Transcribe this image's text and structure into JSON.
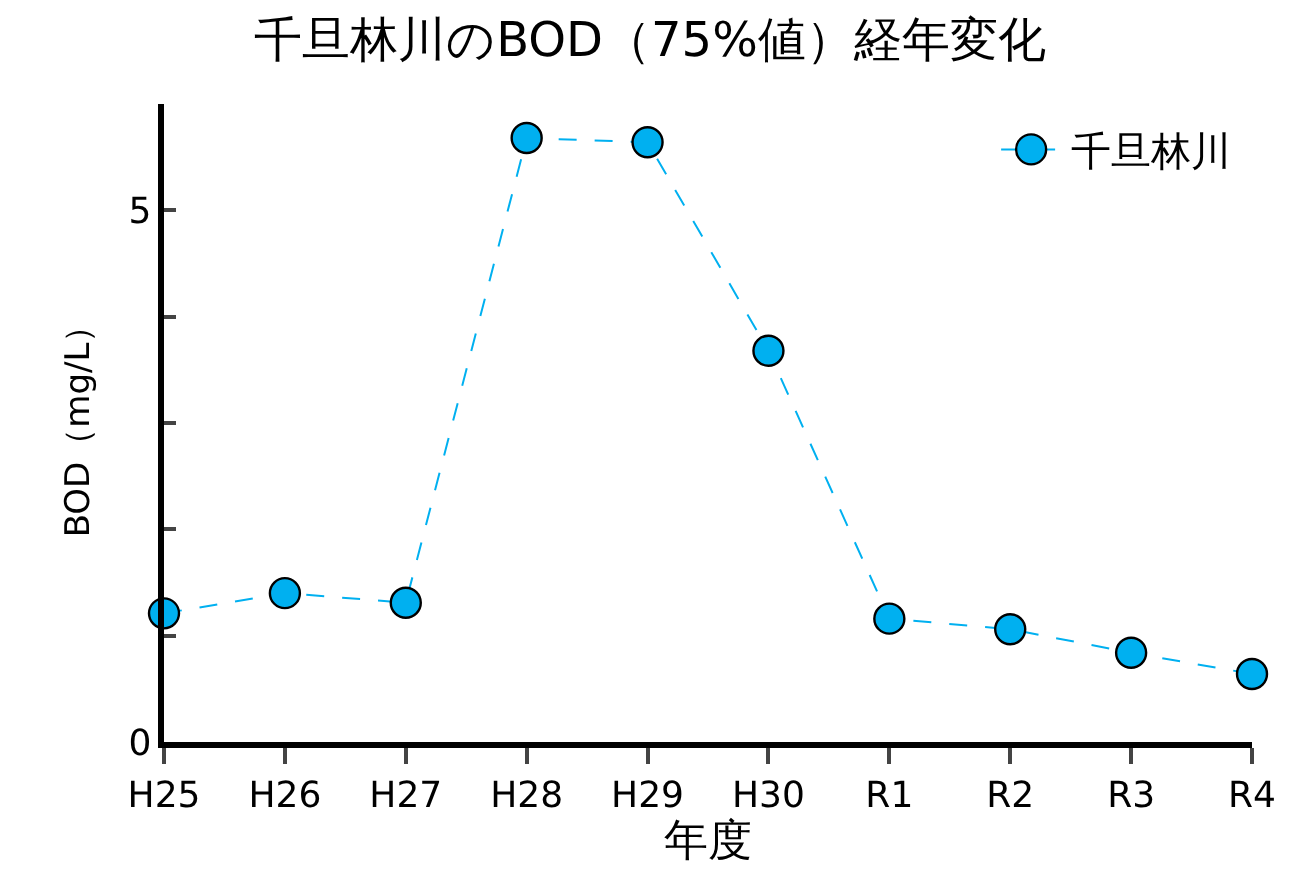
{
  "chart_data": {
    "type": "line",
    "title": "千旦林川のBOD（75%値）経年変化",
    "xlabel": "年度",
    "ylabel": "BOD（mg/L）",
    "categories": [
      "H25",
      "H26",
      "H27",
      "H28",
      "H29",
      "H30",
      "R1",
      "R2",
      "R3",
      "R4"
    ],
    "series": [
      {
        "name": "千旦林川",
        "color": "#00b0f0",
        "values": [
          1.21,
          1.4,
          1.31,
          5.68,
          5.64,
          3.68,
          1.16,
          1.06,
          0.84,
          0.64
        ]
      }
    ],
    "ylim": [
      0,
      6
    ],
    "yticks": [
      0,
      {
        "value": 1,
        "label": null
      },
      {
        "value": 2,
        "label": null
      },
      {
        "value": 3,
        "label": null
      },
      {
        "value": 4,
        "label": null
      },
      5
    ],
    "legend": "top right",
    "marker": "circle",
    "line_style": "dashed"
  }
}
